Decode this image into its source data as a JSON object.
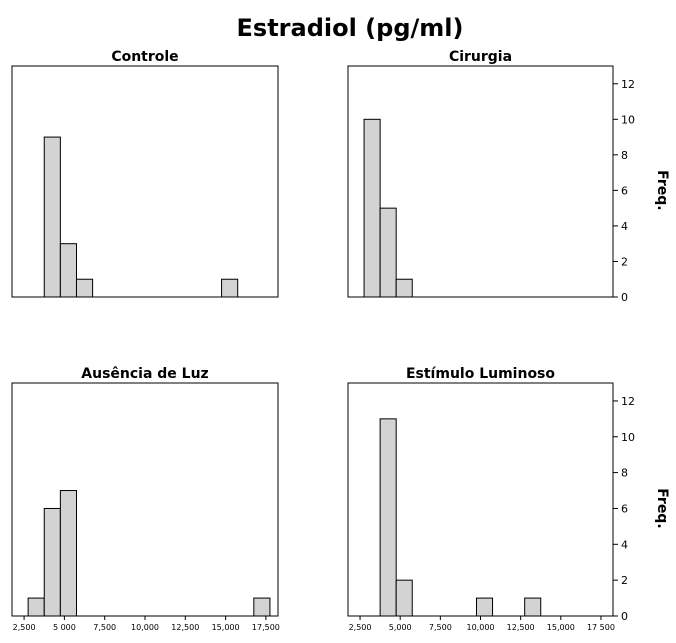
{
  "title": "Estradiol (pg/ml)",
  "y_axis_label": "Freq.",
  "bar_color": "#d3d3d3",
  "bar_stroke": "#000000",
  "chart_data": [
    {
      "type": "bar",
      "title": "Controle",
      "bin_width": 1000,
      "bars": [
        {
          "x0": 3750,
          "x1": 4750,
          "count": 9
        },
        {
          "x0": 4750,
          "x1": 5750,
          "count": 3
        },
        {
          "x0": 5750,
          "x1": 6750,
          "count": 1
        },
        {
          "x0": 14750,
          "x1": 15750,
          "count": 1
        }
      ],
      "xlim": [
        1750,
        18250
      ],
      "ylim": [
        0,
        13
      ],
      "y_ticks": [
        0,
        2,
        4,
        6,
        8,
        10,
        12
      ],
      "show_y_axis": false,
      "show_x_axis": false
    },
    {
      "type": "bar",
      "title": "Cirurgia",
      "bin_width": 1000,
      "bars": [
        {
          "x0": 2750,
          "x1": 3750,
          "count": 10
        },
        {
          "x0": 3750,
          "x1": 4750,
          "count": 5
        },
        {
          "x0": 4750,
          "x1": 5750,
          "count": 1
        }
      ],
      "xlim": [
        1750,
        18250
      ],
      "ylim": [
        0,
        13
      ],
      "y_ticks": [
        0,
        2,
        4,
        6,
        8,
        10,
        12
      ],
      "show_y_axis": true,
      "show_x_axis": false
    },
    {
      "type": "bar",
      "title": "Ausência de Luz",
      "bin_width": 1000,
      "bars": [
        {
          "x0": 2750,
          "x1": 3750,
          "count": 1
        },
        {
          "x0": 3750,
          "x1": 4750,
          "count": 6
        },
        {
          "x0": 4750,
          "x1": 5750,
          "count": 7
        },
        {
          "x0": 16750,
          "x1": 17750,
          "count": 1
        }
      ],
      "xlim": [
        1750,
        18250
      ],
      "ylim": [
        0,
        13
      ],
      "y_ticks": [
        0,
        2,
        4,
        6,
        8,
        10,
        12
      ],
      "x_ticks": [
        2500,
        5000,
        7500,
        10000,
        12500,
        15000,
        17500
      ],
      "x_tick_labels": [
        "2,500",
        "5 000",
        "7,500",
        "10,000",
        "12,500",
        "15,000",
        "17,500"
      ],
      "show_y_axis": false,
      "show_x_axis": true
    },
    {
      "type": "bar",
      "title": "Estímulo Luminoso",
      "bin_width": 1000,
      "bars": [
        {
          "x0": 3750,
          "x1": 4750,
          "count": 11
        },
        {
          "x0": 4750,
          "x1": 5750,
          "count": 2
        },
        {
          "x0": 9750,
          "x1": 10750,
          "count": 1
        },
        {
          "x0": 12750,
          "x1": 13750,
          "count": 1
        }
      ],
      "xlim": [
        1750,
        18250
      ],
      "ylim": [
        0,
        13
      ],
      "y_ticks": [
        0,
        2,
        4,
        6,
        8,
        10,
        12
      ],
      "x_ticks": [
        2500,
        5000,
        7500,
        10000,
        12500,
        15000,
        17500
      ],
      "x_tick_labels": [
        "2,500",
        "5,000",
        "7,500",
        "10,000",
        "12,500",
        "15,000",
        "17 500"
      ],
      "show_y_axis": true,
      "show_x_axis": true
    }
  ]
}
